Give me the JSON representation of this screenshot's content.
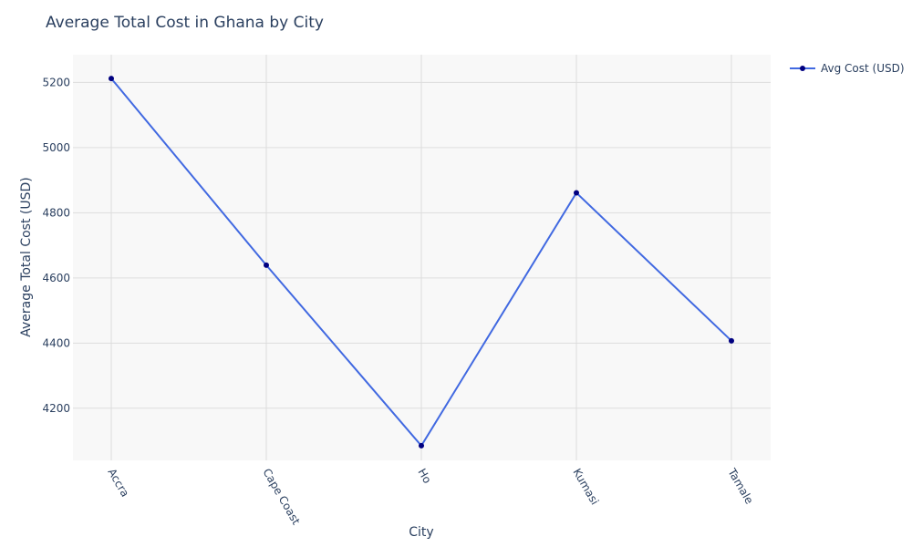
{
  "chart_data": {
    "type": "line",
    "title": "Average Total Cost in Ghana by City",
    "xlabel": "City",
    "ylabel": "Average Total Cost (USD)",
    "categories": [
      "Accra",
      "Cape Coast",
      "Ho",
      "Kumasi",
      "Tamale"
    ],
    "series": [
      {
        "name": "Avg Cost (USD)",
        "values": [
          5212,
          4639,
          4085,
          4861,
          4407
        ]
      }
    ],
    "ylim": [
      4040,
      5285
    ],
    "yticks": [
      4200,
      4400,
      4600,
      4800,
      5000,
      5200
    ],
    "grid": true,
    "legend_position": "top-right",
    "colors": {
      "line": "#4169e1",
      "marker": "#000080",
      "plot_background": "#f8f8f8",
      "grid": "#dddddd",
      "text": "#2a3f5f"
    }
  }
}
